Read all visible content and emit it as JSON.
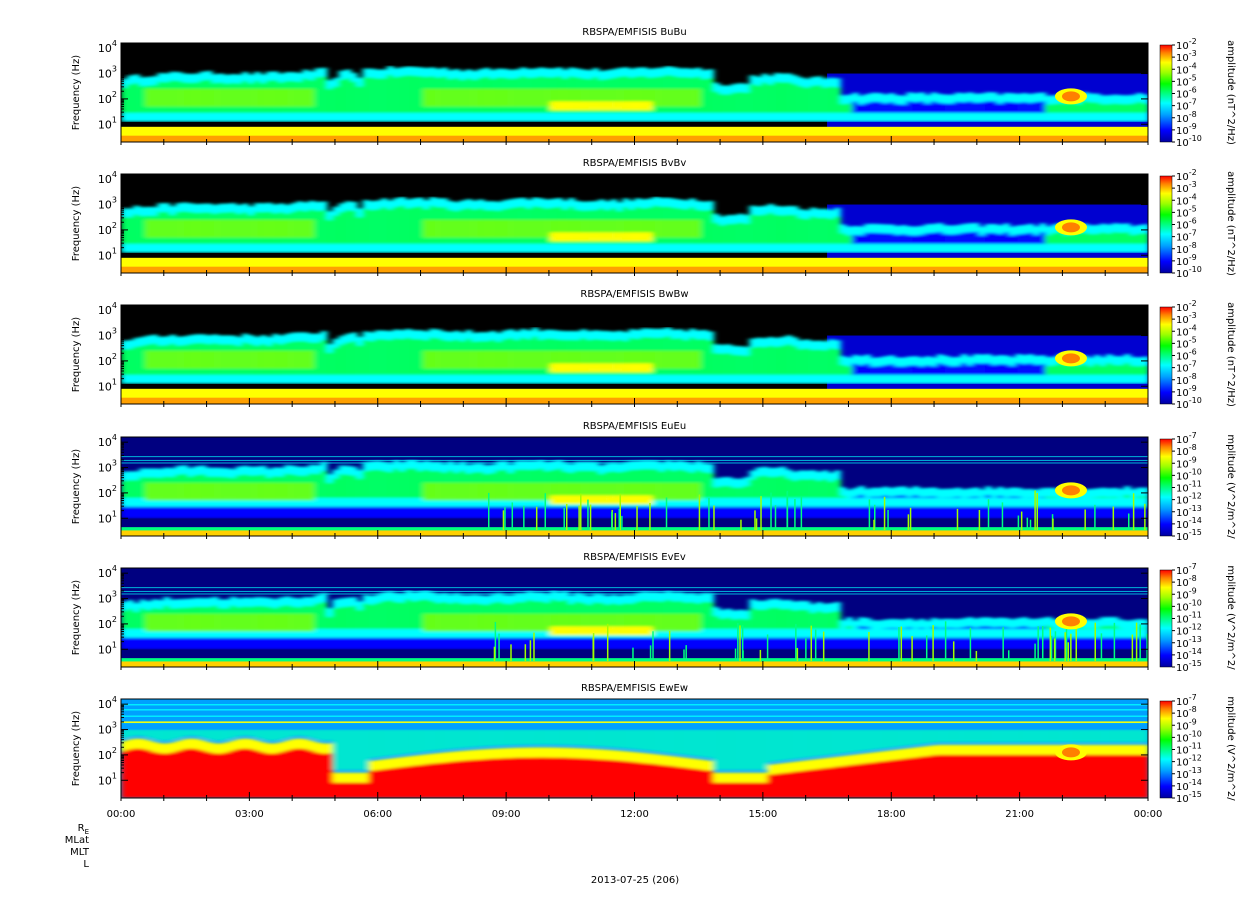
{
  "chart_data": [
    {
      "type": "heatmap",
      "title": "RBSPA/EMFISIS  BuBu",
      "ylabel": "Frequency (Hz)",
      "y_scale": "log",
      "y_ticks": [
        [
          "10",
          "1"
        ],
        [
          "10",
          "2"
        ],
        [
          "10",
          "3"
        ],
        [
          "10",
          "4"
        ]
      ],
      "colorbar_label": "amplitude (nT^2/Hz)",
      "colorbar_ticks": [
        [
          "10",
          "-2"
        ],
        [
          "10",
          "-3"
        ],
        [
          "10",
          "-4"
        ],
        [
          "10",
          "-5"
        ],
        [
          "10",
          "-6"
        ],
        [
          "10",
          "-7"
        ],
        [
          "10",
          "-8"
        ],
        [
          "10",
          "-9"
        ],
        [
          "10",
          "-10"
        ]
      ],
      "colorbar_range_exp": [
        -10,
        -2
      ],
      "kind": "B"
    },
    {
      "type": "heatmap",
      "title": "RBSPA/EMFISIS  BvBv",
      "ylabel": "Frequency (Hz)",
      "y_scale": "log",
      "y_ticks": [
        [
          "10",
          "1"
        ],
        [
          "10",
          "2"
        ],
        [
          "10",
          "3"
        ],
        [
          "10",
          "4"
        ]
      ],
      "colorbar_label": "amplitude (nT^2/Hz)",
      "colorbar_ticks": [
        [
          "10",
          "-2"
        ],
        [
          "10",
          "-3"
        ],
        [
          "10",
          "-4"
        ],
        [
          "10",
          "-5"
        ],
        [
          "10",
          "-6"
        ],
        [
          "10",
          "-7"
        ],
        [
          "10",
          "-8"
        ],
        [
          "10",
          "-9"
        ],
        [
          "10",
          "-10"
        ]
      ],
      "colorbar_range_exp": [
        -10,
        -2
      ],
      "kind": "B"
    },
    {
      "type": "heatmap",
      "title": "RBSPA/EMFISIS  BwBw",
      "ylabel": "Frequency (Hz)",
      "y_scale": "log",
      "y_ticks": [
        [
          "10",
          "1"
        ],
        [
          "10",
          "2"
        ],
        [
          "10",
          "3"
        ],
        [
          "10",
          "4"
        ]
      ],
      "colorbar_label": "amplitude (nT^2/Hz)",
      "colorbar_ticks": [
        [
          "10",
          "-2"
        ],
        [
          "10",
          "-3"
        ],
        [
          "10",
          "-4"
        ],
        [
          "10",
          "-5"
        ],
        [
          "10",
          "-6"
        ],
        [
          "10",
          "-7"
        ],
        [
          "10",
          "-8"
        ],
        [
          "10",
          "-9"
        ],
        [
          "10",
          "-10"
        ]
      ],
      "colorbar_range_exp": [
        -10,
        -2
      ],
      "kind": "B"
    },
    {
      "type": "heatmap",
      "title": "RBSPA/EMFISIS  EuEu",
      "ylabel": "Frequency (Hz)",
      "y_scale": "log",
      "y_ticks": [
        [
          "10",
          "1"
        ],
        [
          "10",
          "2"
        ],
        [
          "10",
          "3"
        ],
        [
          "10",
          "4"
        ]
      ],
      "colorbar_label": "mplitude (V^2/m^2/",
      "colorbar_ticks": [
        [
          "10",
          "-7"
        ],
        [
          "10",
          "-8"
        ],
        [
          "10",
          "-9"
        ],
        [
          "10",
          "-10"
        ],
        [
          "10",
          "-11"
        ],
        [
          "10",
          "-12"
        ],
        [
          "10",
          "-13"
        ],
        [
          "10",
          "-14"
        ],
        [
          "10",
          "-15"
        ]
      ],
      "colorbar_range_exp": [
        -15,
        -7
      ],
      "kind": "E"
    },
    {
      "type": "heatmap",
      "title": "RBSPA/EMFISIS  EvEv",
      "ylabel": "Frequency (Hz)",
      "y_scale": "log",
      "y_ticks": [
        [
          "10",
          "1"
        ],
        [
          "10",
          "2"
        ],
        [
          "10",
          "3"
        ],
        [
          "10",
          "4"
        ]
      ],
      "colorbar_label": "mplitude (V^2/m^2/",
      "colorbar_ticks": [
        [
          "10",
          "-7"
        ],
        [
          "10",
          "-8"
        ],
        [
          "10",
          "-9"
        ],
        [
          "10",
          "-10"
        ],
        [
          "10",
          "-11"
        ],
        [
          "10",
          "-12"
        ],
        [
          "10",
          "-13"
        ],
        [
          "10",
          "-14"
        ],
        [
          "10",
          "-15"
        ]
      ],
      "colorbar_range_exp": [
        -15,
        -7
      ],
      "kind": "E"
    },
    {
      "type": "heatmap",
      "title": "RBSPA/EMFISIS  EwEw",
      "ylabel": "Frequency (Hz)",
      "y_scale": "log",
      "y_ticks": [
        [
          "10",
          "1"
        ],
        [
          "10",
          "2"
        ],
        [
          "10",
          "3"
        ],
        [
          "10",
          "4"
        ]
      ],
      "colorbar_label": "mplitude (V^2/m^2/",
      "colorbar_ticks": [
        [
          "10",
          "-7"
        ],
        [
          "10",
          "-8"
        ],
        [
          "10",
          "-9"
        ],
        [
          "10",
          "-10"
        ],
        [
          "10",
          "-11"
        ],
        [
          "10",
          "-12"
        ],
        [
          "10",
          "-13"
        ],
        [
          "10",
          "-14"
        ],
        [
          "10",
          "-15"
        ]
      ],
      "colorbar_range_exp": [
        -15,
        -7
      ],
      "kind": "Ew"
    }
  ],
  "x_axis": {
    "tick_labels": [
      "00:00",
      "03:00",
      "06:00",
      "09:00",
      "12:00",
      "15:00",
      "18:00",
      "21:00",
      "00:00"
    ],
    "tick_hours": [
      0,
      3,
      6,
      9,
      12,
      15,
      18,
      21,
      24
    ]
  },
  "ephemeris_labels": {
    "re": "R",
    "re_sub": "E",
    "mlat": "MLat",
    "mlt": "MLT",
    "l": "L"
  },
  "date_label": "2013-07-25 (206)",
  "colors": {
    "background": "#000000",
    "colormap": [
      "#0000a0",
      "#0000ff",
      "#00a0ff",
      "#00ffff",
      "#00ff80",
      "#00ff00",
      "#a0ff00",
      "#ffff00",
      "#ff8000",
      "#ff0000"
    ]
  }
}
